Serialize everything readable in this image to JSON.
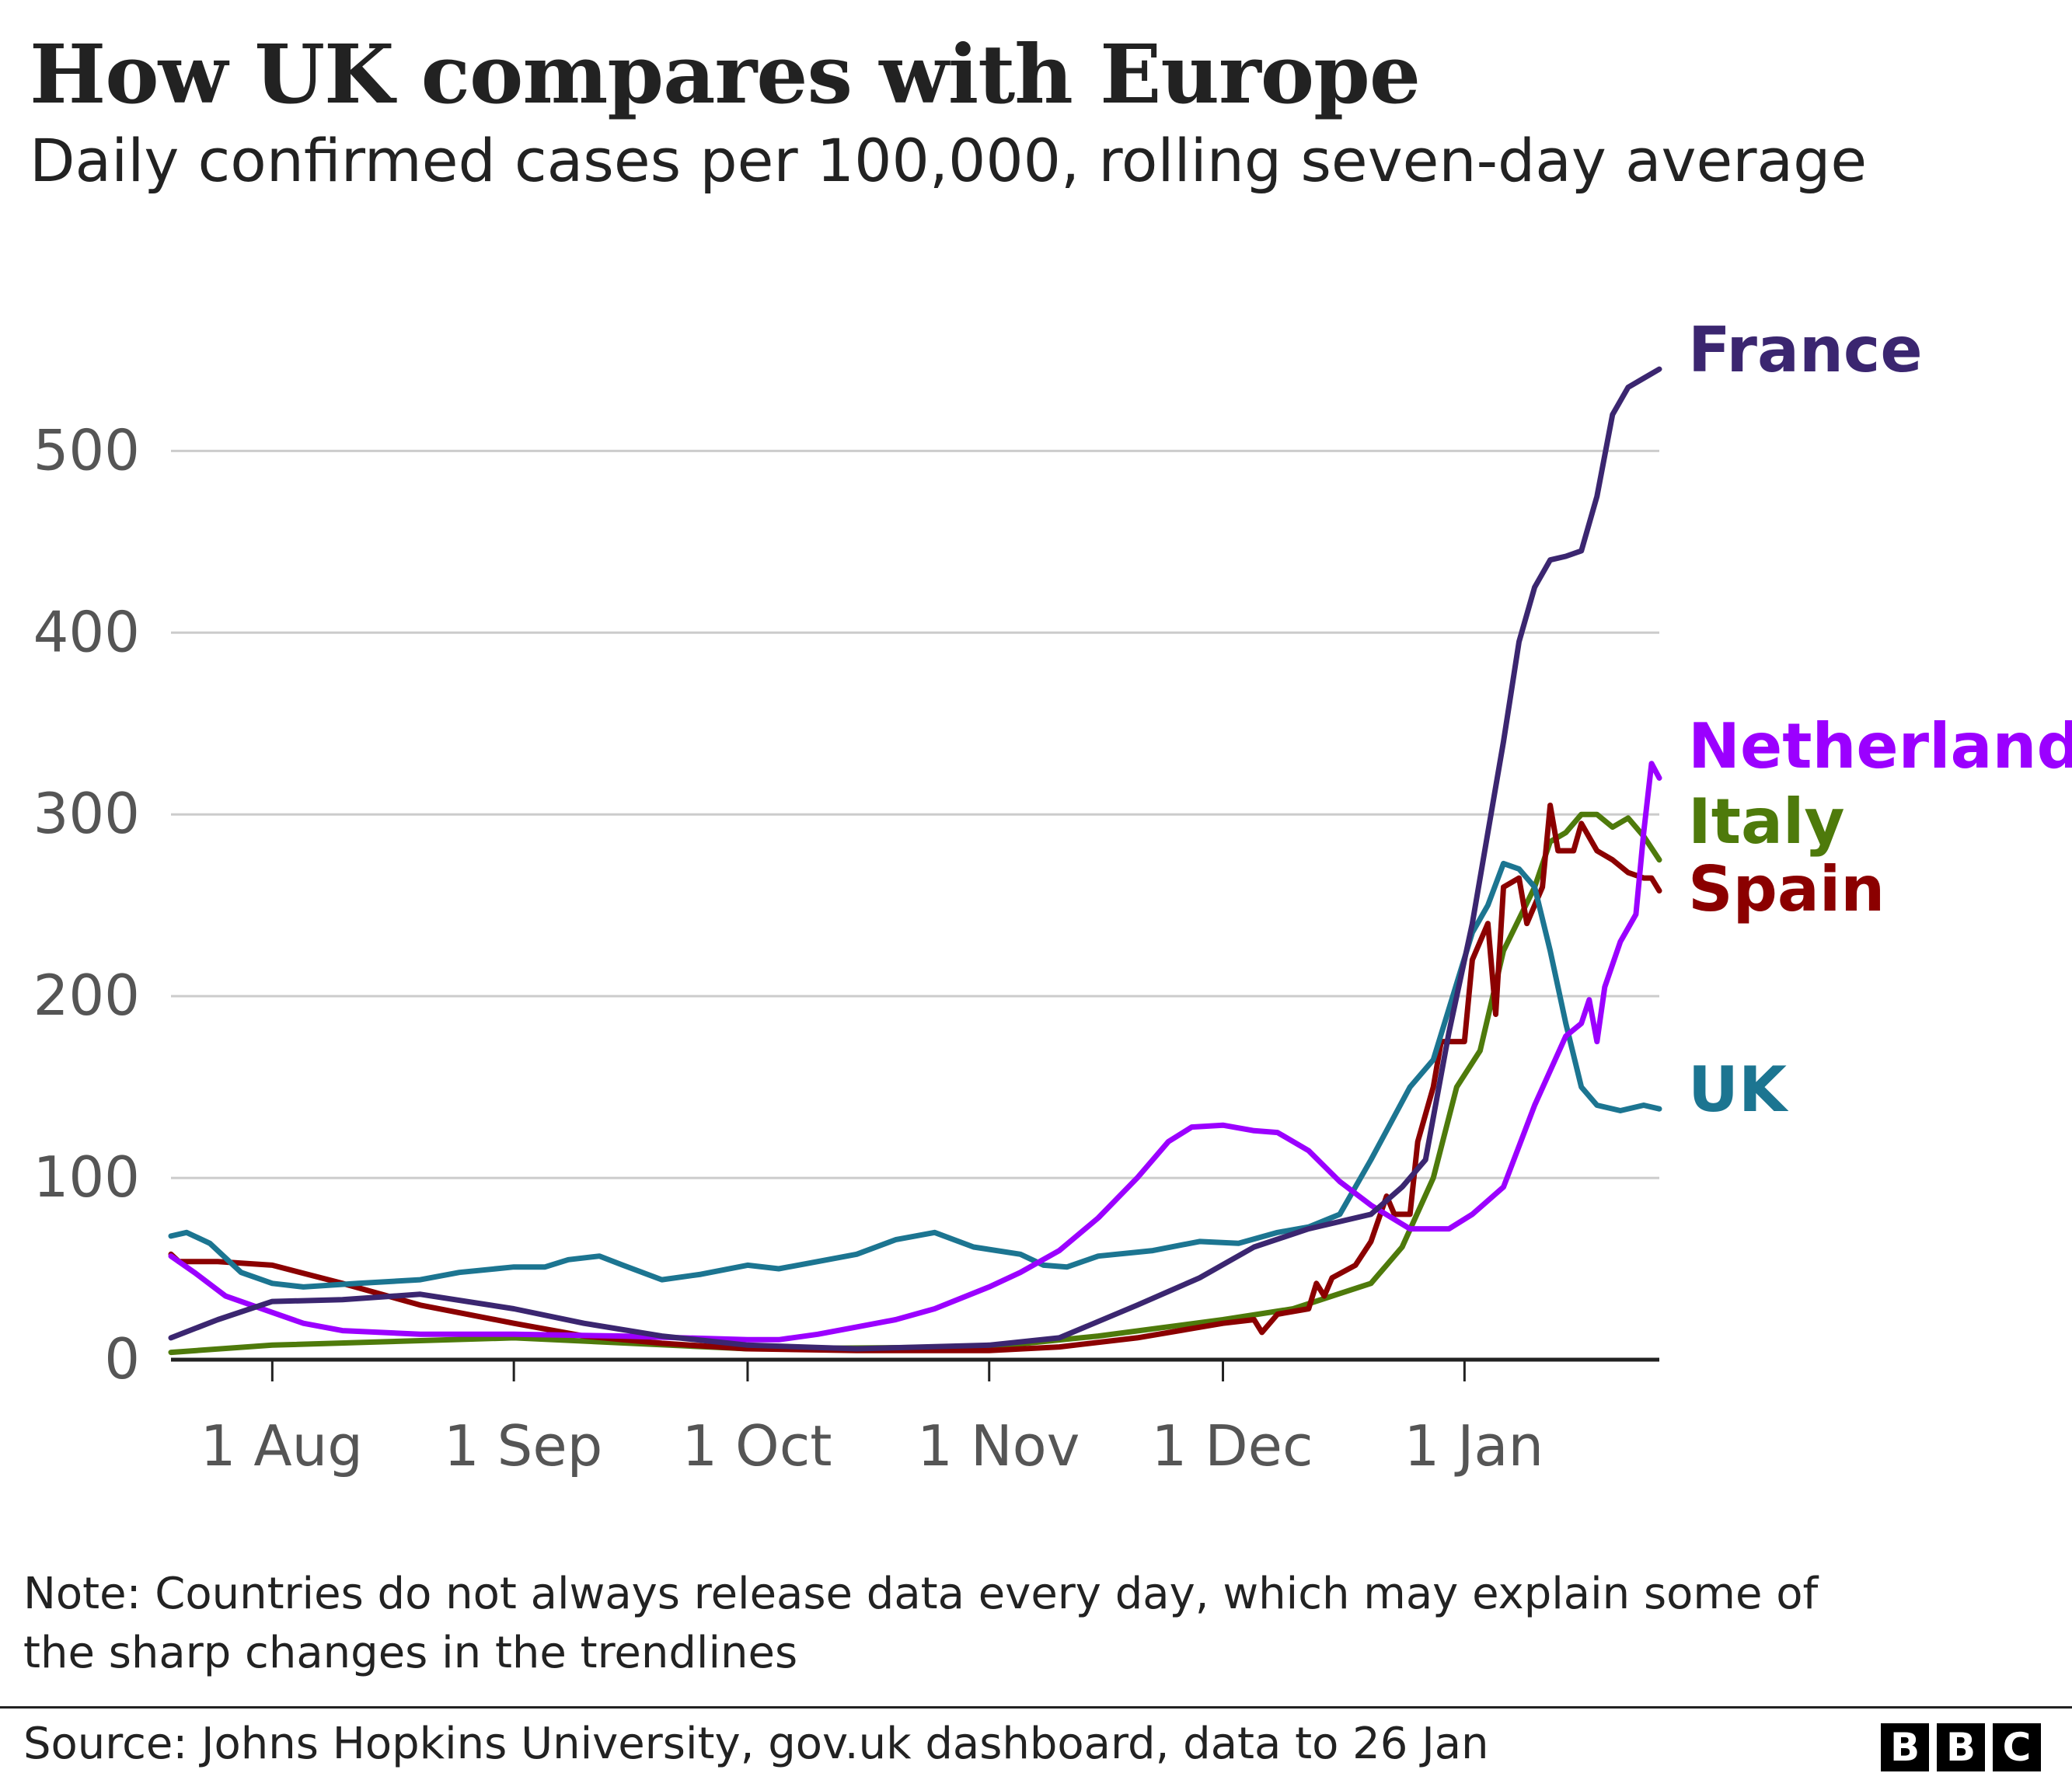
{
  "header": {
    "title": "How UK compares with Europe",
    "subtitle": "Daily confirmed cases per 100,000, rolling seven-day average"
  },
  "note": "Note: Countries do not always release data every day, which may explain some of the sharp changes in the trendlines",
  "source": "Source: Johns Hopkins University, gov.uk dashboard, data to 26 Jan",
  "logo": {
    "letters": [
      "B",
      "B",
      "C"
    ]
  },
  "chart_data": {
    "type": "line",
    "title": "How UK compares with Europe",
    "subtitle": "Daily confirmed cases per 100,000, rolling seven-day average",
    "xlabel": "",
    "ylabel": "",
    "x_range": [
      "2021-07-19",
      "2022-01-26"
    ],
    "ylim": [
      0,
      560
    ],
    "y_ticks": [
      0,
      100,
      200,
      300,
      400,
      500
    ],
    "x_ticks": [
      {
        "date": "2021-08-01",
        "label": "1 Aug"
      },
      {
        "date": "2021-09-01",
        "label": "1 Sep"
      },
      {
        "date": "2021-10-01",
        "label": "1 Oct"
      },
      {
        "date": "2021-11-01",
        "label": "1 Nov"
      },
      {
        "date": "2021-12-01",
        "label": "1 Dec"
      },
      {
        "date": "2022-01-01",
        "label": "1 Jan"
      }
    ],
    "grid": "horizontal",
    "legend": "direct labels at line ends",
    "series": [
      {
        "name": "Italy",
        "color": "#4e7a0b",
        "points": [
          [
            "2021-07-19",
            4
          ],
          [
            "2021-08-01",
            8
          ],
          [
            "2021-09-01",
            12
          ],
          [
            "2021-10-01",
            6
          ],
          [
            "2021-11-01",
            7
          ],
          [
            "2021-11-15",
            13
          ],
          [
            "2021-12-01",
            22
          ],
          [
            "2021-12-10",
            28
          ],
          [
            "2021-12-20",
            42
          ],
          [
            "2021-12-24",
            62
          ],
          [
            "2021-12-28",
            100
          ],
          [
            "2021-12-31",
            150
          ],
          [
            "2022-01-03",
            170
          ],
          [
            "2022-01-06",
            225
          ],
          [
            "2022-01-10",
            260
          ],
          [
            "2022-01-12",
            285
          ],
          [
            "2022-01-14",
            290
          ],
          [
            "2022-01-16",
            300
          ],
          [
            "2022-01-18",
            300
          ],
          [
            "2022-01-20",
            293
          ],
          [
            "2022-01-22",
            298
          ],
          [
            "2022-01-24",
            288
          ],
          [
            "2022-01-26",
            275
          ]
        ]
      },
      {
        "name": "Spain",
        "color": "#8b0000",
        "points": [
          [
            "2021-07-19",
            58
          ],
          [
            "2021-07-20",
            54
          ],
          [
            "2021-07-25",
            54
          ],
          [
            "2021-08-01",
            52
          ],
          [
            "2021-08-10",
            42
          ],
          [
            "2021-08-20",
            30
          ],
          [
            "2021-09-01",
            20
          ],
          [
            "2021-09-10",
            13
          ],
          [
            "2021-09-20",
            9
          ],
          [
            "2021-10-01",
            6
          ],
          [
            "2021-10-15",
            5
          ],
          [
            "2021-11-01",
            5
          ],
          [
            "2021-11-10",
            7
          ],
          [
            "2021-11-20",
            12
          ],
          [
            "2021-12-01",
            20
          ],
          [
            "2021-12-05",
            22
          ],
          [
            "2021-12-06",
            15
          ],
          [
            "2021-12-08",
            25
          ],
          [
            "2021-12-12",
            28
          ],
          [
            "2021-12-13",
            42
          ],
          [
            "2021-12-14",
            35
          ],
          [
            "2021-12-15",
            45
          ],
          [
            "2021-12-18",
            52
          ],
          [
            "2021-12-20",
            65
          ],
          [
            "2021-12-22",
            90
          ],
          [
            "2021-12-23",
            80
          ],
          [
            "2021-12-25",
            80
          ],
          [
            "2021-12-26",
            120
          ],
          [
            "2021-12-28",
            150
          ],
          [
            "2021-12-29",
            175
          ],
          [
            "2022-01-01",
            175
          ],
          [
            "2022-01-02",
            220
          ],
          [
            "2022-01-04",
            240
          ],
          [
            "2022-01-05",
            190
          ],
          [
            "2022-01-06",
            260
          ],
          [
            "2022-01-08",
            265
          ],
          [
            "2022-01-09",
            240
          ],
          [
            "2022-01-11",
            260
          ],
          [
            "2022-01-12",
            305
          ],
          [
            "2022-01-13",
            280
          ],
          [
            "2022-01-15",
            280
          ],
          [
            "2022-01-16",
            295
          ],
          [
            "2022-01-18",
            280
          ],
          [
            "2022-01-20",
            275
          ],
          [
            "2022-01-22",
            268
          ],
          [
            "2022-01-24",
            265
          ],
          [
            "2022-01-25",
            265
          ],
          [
            "2022-01-26",
            258
          ]
        ]
      },
      {
        "name": "UK",
        "color": "#1c7591",
        "points": [
          [
            "2021-07-19",
            68
          ],
          [
            "2021-07-21",
            70
          ],
          [
            "2021-07-24",
            64
          ],
          [
            "2021-07-28",
            48
          ],
          [
            "2021-08-01",
            42
          ],
          [
            "2021-08-05",
            40
          ],
          [
            "2021-08-12",
            42
          ],
          [
            "2021-08-20",
            44
          ],
          [
            "2021-08-25",
            48
          ],
          [
            "2021-09-01",
            51
          ],
          [
            "2021-09-05",
            51
          ],
          [
            "2021-09-08",
            55
          ],
          [
            "2021-09-12",
            57
          ],
          [
            "2021-09-15",
            52
          ],
          [
            "2021-09-20",
            44
          ],
          [
            "2021-09-25",
            47
          ],
          [
            "2021-10-01",
            52
          ],
          [
            "2021-10-05",
            50
          ],
          [
            "2021-10-10",
            54
          ],
          [
            "2021-10-15",
            58
          ],
          [
            "2021-10-20",
            66
          ],
          [
            "2021-10-25",
            70
          ],
          [
            "2021-10-30",
            62
          ],
          [
            "2021-11-05",
            58
          ],
          [
            "2021-11-08",
            52
          ],
          [
            "2021-11-11",
            51
          ],
          [
            "2021-11-15",
            57
          ],
          [
            "2021-11-22",
            60
          ],
          [
            "2021-11-28",
            65
          ],
          [
            "2021-12-03",
            64
          ],
          [
            "2021-12-08",
            70
          ],
          [
            "2021-12-12",
            73
          ],
          [
            "2021-12-16",
            80
          ],
          [
            "2021-12-20",
            110
          ],
          [
            "2021-12-25",
            150
          ],
          [
            "2021-12-28",
            165
          ],
          [
            "2022-01-02",
            235
          ],
          [
            "2022-01-04",
            250
          ],
          [
            "2022-01-06",
            273
          ],
          [
            "2022-01-08",
            270
          ],
          [
            "2022-01-10",
            260
          ],
          [
            "2022-01-12",
            225
          ],
          [
            "2022-01-14",
            185
          ],
          [
            "2022-01-16",
            150
          ],
          [
            "2022-01-18",
            140
          ],
          [
            "2022-01-21",
            137
          ],
          [
            "2022-01-24",
            140
          ],
          [
            "2022-01-26",
            138
          ]
        ]
      },
      {
        "name": "Netherlands",
        "color": "#9b00ff",
        "points": [
          [
            "2021-07-19",
            57
          ],
          [
            "2021-07-22",
            48
          ],
          [
            "2021-07-26",
            35
          ],
          [
            "2021-08-01",
            26
          ],
          [
            "2021-08-05",
            20
          ],
          [
            "2021-08-10",
            16
          ],
          [
            "2021-08-20",
            14
          ],
          [
            "2021-09-01",
            14
          ],
          [
            "2021-09-15",
            13
          ],
          [
            "2021-10-01",
            11
          ],
          [
            "2021-10-05",
            11
          ],
          [
            "2021-10-10",
            14
          ],
          [
            "2021-10-15",
            18
          ],
          [
            "2021-10-20",
            22
          ],
          [
            "2021-10-25",
            28
          ],
          [
            "2021-11-01",
            40
          ],
          [
            "2021-11-05",
            48
          ],
          [
            "2021-11-10",
            60
          ],
          [
            "2021-11-15",
            78
          ],
          [
            "2021-11-20",
            100
          ],
          [
            "2021-11-24",
            120
          ],
          [
            "2021-11-27",
            128
          ],
          [
            "2021-12-01",
            129
          ],
          [
            "2021-12-05",
            126
          ],
          [
            "2021-12-08",
            125
          ],
          [
            "2021-12-12",
            115
          ],
          [
            "2021-12-16",
            98
          ],
          [
            "2021-12-20",
            85
          ],
          [
            "2021-12-25",
            72
          ],
          [
            "2021-12-30",
            72
          ],
          [
            "2022-01-02",
            80
          ],
          [
            "2022-01-06",
            95
          ],
          [
            "2022-01-10",
            140
          ],
          [
            "2022-01-14",
            178
          ],
          [
            "2022-01-16",
            185
          ],
          [
            "2022-01-17",
            198
          ],
          [
            "2022-01-18",
            175
          ],
          [
            "2022-01-19",
            205
          ],
          [
            "2022-01-21",
            230
          ],
          [
            "2022-01-23",
            245
          ],
          [
            "2022-01-24",
            290
          ],
          [
            "2022-01-25",
            328
          ],
          [
            "2022-01-26",
            320
          ]
        ]
      },
      {
        "name": "France",
        "color": "#3b2670",
        "points": [
          [
            "2021-07-19",
            12
          ],
          [
            "2021-07-25",
            22
          ],
          [
            "2021-08-01",
            32
          ],
          [
            "2021-08-10",
            33
          ],
          [
            "2021-08-20",
            36
          ],
          [
            "2021-09-01",
            28
          ],
          [
            "2021-09-10",
            20
          ],
          [
            "2021-09-20",
            13
          ],
          [
            "2021-10-01",
            8
          ],
          [
            "2021-10-15",
            6
          ],
          [
            "2021-11-01",
            8
          ],
          [
            "2021-11-10",
            12
          ],
          [
            "2021-11-20",
            30
          ],
          [
            "2021-11-28",
            45
          ],
          [
            "2021-12-05",
            62
          ],
          [
            "2021-12-12",
            72
          ],
          [
            "2021-12-20",
            80
          ],
          [
            "2021-12-24",
            95
          ],
          [
            "2021-12-27",
            110
          ],
          [
            "2021-12-30",
            180
          ],
          [
            "2022-01-02",
            240
          ],
          [
            "2022-01-04",
            290
          ],
          [
            "2022-01-06",
            340
          ],
          [
            "2022-01-08",
            395
          ],
          [
            "2022-01-10",
            425
          ],
          [
            "2022-01-12",
            440
          ],
          [
            "2022-01-14",
            442
          ],
          [
            "2022-01-16",
            445
          ],
          [
            "2022-01-18",
            475
          ],
          [
            "2022-01-20",
            520
          ],
          [
            "2022-01-22",
            535
          ],
          [
            "2022-01-24",
            540
          ],
          [
            "2022-01-26",
            545
          ]
        ]
      }
    ]
  }
}
